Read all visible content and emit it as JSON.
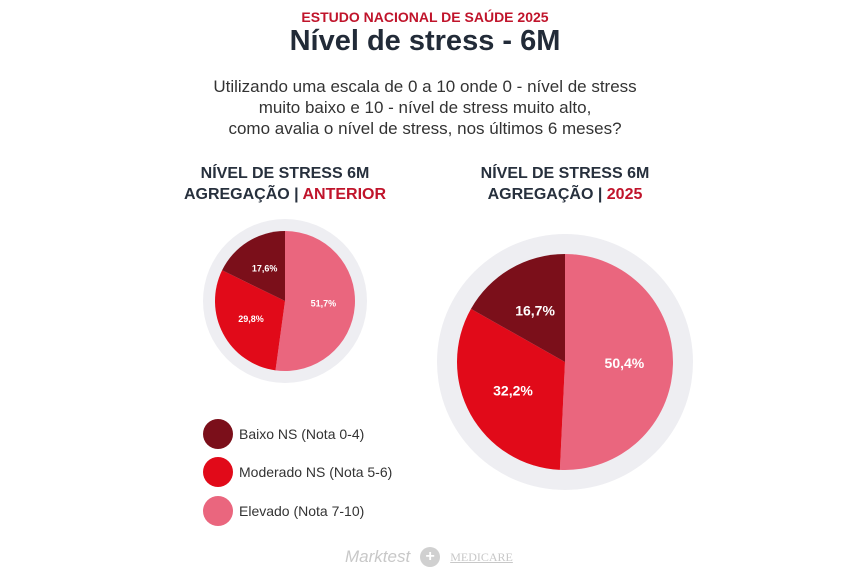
{
  "header": {
    "kicker": "ESTUDO NACIONAL DE SAÚDE 2025",
    "title": "Nível de stress - 6M",
    "question": [
      "Utilizando uma escala de 0 a 10 onde 0 - nível de stress",
      "muito baixo e 10 - nível de stress muito alto,",
      "como avalia o nível de stress, nos últimos 6 meses?"
    ]
  },
  "chart_data": [
    {
      "type": "pie",
      "title_line1": "NÍVEL DE STRESS 6M",
      "title_line2": "AGREGAÇÃO | ",
      "title_highlight": "ANTERIOR",
      "categories": [
        "Elevado (Nota 7-10)",
        "Moderado NS (Nota 5-6)",
        "Baixo NS (Nota 0-4)"
      ],
      "values": [
        51.7,
        29.8,
        17.6
      ],
      "labels": [
        "51,7%",
        "29,8%",
        "17,6%"
      ]
    },
    {
      "type": "pie",
      "title_line1": "NÍVEL DE STRESS 6M",
      "title_line2": "AGREGAÇÃO | ",
      "title_highlight": "2025",
      "categories": [
        "Elevado (Nota 7-10)",
        "Moderado NS (Nota 5-6)",
        "Baixo NS (Nota 0-4)"
      ],
      "values": [
        50.4,
        32.2,
        16.7
      ],
      "labels": [
        "50,4%",
        "32,2%",
        "16,7%"
      ]
    }
  ],
  "legend": [
    {
      "label": "Baixo NS (Nota 0-4)",
      "color": "#7b0f1a"
    },
    {
      "label": "Moderado NS (Nota 5-6)",
      "color": "#e10a19"
    },
    {
      "label": "Elevado (Nota 7-10)",
      "color": "#ea667e"
    }
  ],
  "slice_colors": [
    "#ea667e",
    "#e10a19",
    "#7b0f1a"
  ],
  "footer": {
    "brand1": "Marktest",
    "brand2": "MEDICARE"
  }
}
